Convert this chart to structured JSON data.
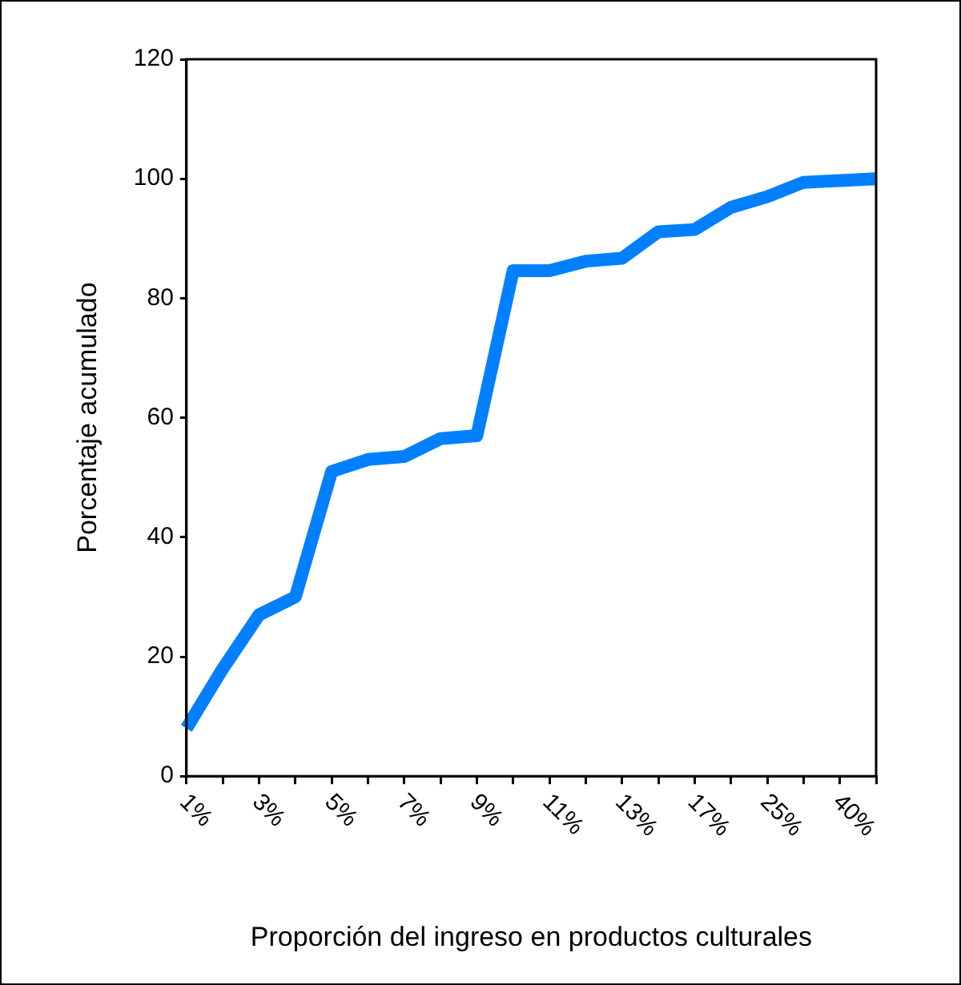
{
  "chart_data": {
    "type": "line",
    "xlabel": "Proporción del ingreso en productos culturales",
    "ylabel": "Porcentaje acumulado",
    "categories": [
      "1%",
      null,
      "3%",
      null,
      "5%",
      null,
      "7%",
      null,
      "9%",
      null,
      "11%",
      null,
      "13%",
      null,
      "17%",
      null,
      "25%",
      null,
      "40%",
      null
    ],
    "series": [
      {
        "color": "#0080ff",
        "values": [
          8,
          18,
          27,
          30,
          51,
          53,
          53.5,
          56.5,
          57,
          84.6,
          84.6,
          86.2,
          86.7,
          91.1,
          91.5,
          95.2,
          97,
          99.4,
          99.7,
          100
        ]
      }
    ],
    "ylim": [
      0,
      120
    ],
    "yticks": [
      0,
      20,
      40,
      60,
      80,
      100,
      120
    ],
    "grid": false,
    "legend": false,
    "marker": "none",
    "line_style": "solid"
  }
}
